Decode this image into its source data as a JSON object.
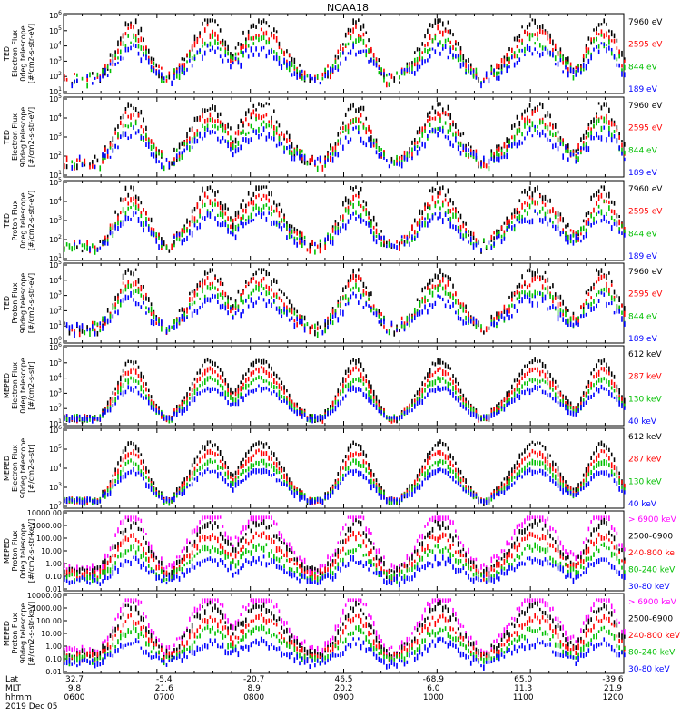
{
  "title": "NOAA18",
  "footer": {
    "row_labels": [
      "Lat",
      "MLT",
      "hhmm",
      "2019 Dec 05"
    ],
    "lat": [
      "32.7",
      "-5.4",
      "-20.7",
      "46.5",
      "-68.9",
      "65.0",
      "-39.6"
    ],
    "mlt": [
      "9.8",
      "21.6",
      "8.9",
      "20.2",
      "6.0",
      "11.3",
      "21.9"
    ],
    "hhmm": [
      "0600",
      "0700",
      "0800",
      "0900",
      "1000",
      "1100",
      "1200"
    ]
  },
  "colors": {
    "black": "#000000",
    "red": "#ff0000",
    "green": "#00e000",
    "blue": "#0000ff",
    "magenta": "#ff00ff"
  },
  "chart_data": [
    {
      "type": "scatter",
      "ylabel": [
        "TED",
        "Electron Flux",
        "0deg telescope",
        "[#/cm2-s-str-eV]"
      ],
      "log_scale": true,
      "y_ticks": [
        "10^1",
        "10^2",
        "10^3",
        "10^4",
        "10^5",
        "10^6"
      ],
      "legend": [
        {
          "label": "7960 eV",
          "color": "#000000"
        },
        {
          "label": "2595 eV",
          "color": "#ff0000"
        },
        {
          "label": "844 eV",
          "color": "#00c000"
        },
        {
          "label": "189 eV",
          "color": "#0000ff"
        }
      ]
    },
    {
      "type": "scatter",
      "ylabel": [
        "TED",
        "Electron Flux",
        "90deg telescope",
        "[#/cm2-s-str-eV]"
      ],
      "log_scale": true,
      "y_ticks": [
        "10^1",
        "10^2",
        "10^3",
        "10^4",
        "10^5"
      ],
      "legend": [
        {
          "label": "7960 eV",
          "color": "#000000"
        },
        {
          "label": "2595 eV",
          "color": "#ff0000"
        },
        {
          "label": "844 eV",
          "color": "#00c000"
        },
        {
          "label": "189 eV",
          "color": "#0000ff"
        }
      ]
    },
    {
      "type": "scatter",
      "ylabel": [
        "TED",
        "Proton Flux",
        "0deg telescope",
        "[#/cm2-s-str-eV]"
      ],
      "log_scale": true,
      "y_ticks": [
        "10^1",
        "10^2",
        "10^3",
        "10^4",
        "10^5"
      ],
      "legend": [
        {
          "label": "7960 eV",
          "color": "#000000"
        },
        {
          "label": "2595 eV",
          "color": "#ff0000"
        },
        {
          "label": "844 eV",
          "color": "#00c000"
        },
        {
          "label": "189 eV",
          "color": "#0000ff"
        }
      ]
    },
    {
      "type": "scatter",
      "ylabel": [
        "TED",
        "Proton Flux",
        "90deg telescope",
        "[#/cm2-s-str-eV]"
      ],
      "log_scale": true,
      "y_ticks": [
        "10^0",
        "10^1",
        "10^2",
        "10^3",
        "10^4",
        "10^5"
      ],
      "legend": [
        {
          "label": "7960 eV",
          "color": "#000000"
        },
        {
          "label": "2595 eV",
          "color": "#ff0000"
        },
        {
          "label": "844 eV",
          "color": "#00c000"
        },
        {
          "label": "189 eV",
          "color": "#0000ff"
        }
      ]
    },
    {
      "type": "scatter",
      "ylabel": [
        "MEPED",
        "Electron Flux",
        "0deg telescope",
        "[#/cm2-s-str]"
      ],
      "log_scale": true,
      "y_ticks": [
        "10^1",
        "10^2",
        "10^3",
        "10^4",
        "10^5",
        "10^6"
      ],
      "legend": [
        {
          "label": "612 keV",
          "color": "#000000"
        },
        {
          "label": "287 keV",
          "color": "#ff0000"
        },
        {
          "label": "130 keV",
          "color": "#00c000"
        },
        {
          "label": "40 keV",
          "color": "#0000ff"
        }
      ]
    },
    {
      "type": "scatter",
      "ylabel": [
        "MEPED",
        "Electron Flux",
        "90deg telescope",
        "[#/cm2-s-str]"
      ],
      "log_scale": true,
      "y_ticks": [
        "10^2",
        "10^3",
        "10^4",
        "10^5",
        "10^6"
      ],
      "legend": [
        {
          "label": "612 keV",
          "color": "#000000"
        },
        {
          "label": "287 keV",
          "color": "#ff0000"
        },
        {
          "label": "130 keV",
          "color": "#00c000"
        },
        {
          "label": "40 keV",
          "color": "#0000ff"
        }
      ]
    },
    {
      "type": "scatter",
      "ylabel": [
        "MEPED",
        "Proton Flux",
        "0deg telescope",
        "[#/cm2-s-str-keV]"
      ],
      "log_scale": true,
      "y_ticks": [
        "0.01",
        "0.10",
        "1.00",
        "10.00",
        "100.00",
        "1000.00",
        "10000.00"
      ],
      "legend": [
        {
          "label": "> 6900 keV",
          "color": "#ff00ff"
        },
        {
          "label": "2500-6900",
          "color": "#000000"
        },
        {
          "label": "240-800 ke",
          "color": "#ff0000"
        },
        {
          "label": "80-240 keV",
          "color": "#00c000"
        },
        {
          "label": "30-80 keV",
          "color": "#0000ff"
        }
      ]
    },
    {
      "type": "scatter",
      "ylabel": [
        "MEPED",
        "Proton Flux",
        "90deg telescope",
        "[#/cm2-s-str-keV]"
      ],
      "log_scale": true,
      "y_ticks": [
        "0.01",
        "0.10",
        "1.00",
        "10.00",
        "100.00",
        "1000.00",
        "10000.00"
      ],
      "legend": [
        {
          "label": "> 6900 keV",
          "color": "#ff00ff"
        },
        {
          "label": "2500-6900",
          "color": "#000000"
        },
        {
          "label": "240-800 keV",
          "color": "#ff0000"
        },
        {
          "label": "80-240 keV",
          "color": "#00c000"
        },
        {
          "label": "30-80 keV",
          "color": "#0000ff"
        }
      ]
    }
  ]
}
